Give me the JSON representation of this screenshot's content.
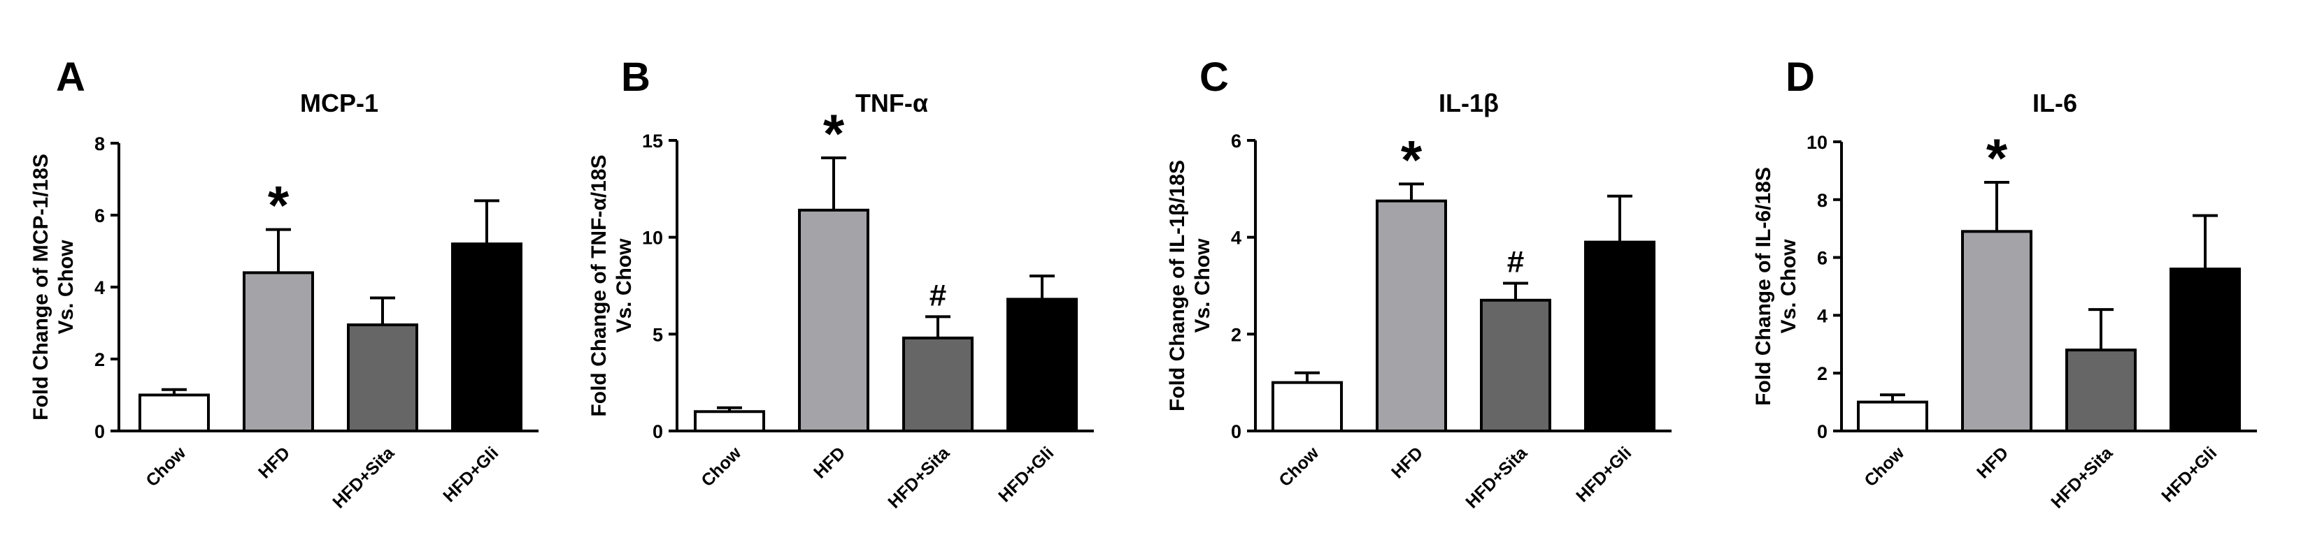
{
  "figure": {
    "colors": {
      "Chow": "#ffffff",
      "HFD": "#a3a3a8",
      "HFD+Sita": "#666666",
      "HFD+Gli": "#000000",
      "axis": "#000000"
    }
  },
  "chart_data": [
    {
      "type": "bar",
      "panel": "A",
      "title": "MCP-1",
      "ylabel_line1": "Fold Change of MCP-1/18S",
      "ylabel_line2": "Vs. Chow",
      "categories": [
        "Chow",
        "HFD",
        "HFD+Sita",
        "HFD+Gli"
      ],
      "values": [
        1.0,
        4.4,
        2.95,
        5.2
      ],
      "errors": [
        0.15,
        1.2,
        0.75,
        1.2
      ],
      "significance": [
        "",
        "*",
        "",
        ""
      ],
      "ylim": [
        0,
        8
      ],
      "yticks": [
        0,
        2,
        4,
        6,
        8
      ]
    },
    {
      "type": "bar",
      "panel": "B",
      "title": "TNF-α",
      "ylabel_line1": "Fold Change of TNF-α/18S",
      "ylabel_line2": "Vs. Chow",
      "categories": [
        "Chow",
        "HFD",
        "HFD+Sita",
        "HFD+Gli"
      ],
      "values": [
        1.0,
        11.4,
        4.8,
        6.8
      ],
      "errors": [
        0.2,
        2.7,
        1.1,
        1.2
      ],
      "significance": [
        "",
        "*",
        "#",
        ""
      ],
      "ylim": [
        0,
        15
      ],
      "yticks": [
        0,
        5,
        10,
        15
      ]
    },
    {
      "type": "bar",
      "panel": "C",
      "title": "IL-1β",
      "ylabel_line1": "Fold Change of IL-1β/18S",
      "ylabel_line2": "Vs. Chow",
      "categories": [
        "Chow",
        "HFD",
        "HFD+Sita",
        "HFD+Gli"
      ],
      "values": [
        1.0,
        4.75,
        2.7,
        3.9
      ],
      "errors": [
        0.2,
        0.35,
        0.35,
        0.95
      ],
      "significance": [
        "",
        "*",
        "#",
        ""
      ],
      "ylim": [
        0,
        6
      ],
      "yticks": [
        0,
        2,
        4,
        6
      ]
    },
    {
      "type": "bar",
      "panel": "D",
      "title": "IL-6",
      "ylabel_line1": "Fold Change of IL-6/18S",
      "ylabel_line2": "Vs. Chow",
      "categories": [
        "Chow",
        "HFD",
        "HFD+Sita",
        "HFD+Gli"
      ],
      "values": [
        1.0,
        6.9,
        2.8,
        5.6
      ],
      "errors": [
        0.25,
        1.7,
        1.4,
        1.85
      ],
      "significance": [
        "",
        "*",
        "",
        ""
      ],
      "ylim": [
        0,
        10
      ],
      "yticks": [
        0,
        2,
        4,
        6,
        8,
        10
      ]
    }
  ]
}
